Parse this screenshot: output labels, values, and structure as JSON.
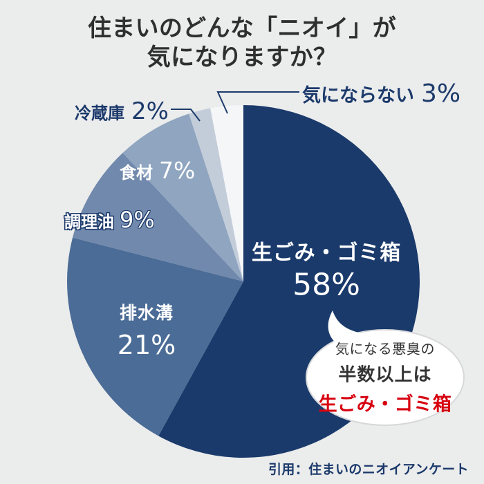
{
  "title": {
    "line1": "住まいのどんな「ニオイ」が",
    "line2": "気になりますか？"
  },
  "chart_data": {
    "type": "pie",
    "title": "住まいのどんな「ニオイ」が気になりますか？",
    "unit": "%",
    "start_angle_deg": 0,
    "direction": "clockwise",
    "total": 100,
    "segments": [
      {
        "label": "生ごみ・ゴミ箱",
        "value": 58,
        "pct_label": "58%",
        "color": "#1a3a6b",
        "label_color": "#ffffff"
      },
      {
        "label": "排水溝",
        "value": 21,
        "pct_label": "21%",
        "color": "#4b6c96",
        "label_color": "#ffffff"
      },
      {
        "label": "調理油",
        "value": 9,
        "pct_label": "9%",
        "color": "#7189ac",
        "label_color": "#ffffff"
      },
      {
        "label": "食材",
        "value": 7,
        "pct_label": "7%",
        "color": "#8fa5c0",
        "label_color": "#ffffff"
      },
      {
        "label": "冷蔵庫",
        "value": 2,
        "pct_label": "2%",
        "color": "#c3cdda",
        "label_color": "#1c3a6b"
      },
      {
        "label": "気にならない",
        "value": 3,
        "pct_label": "3%",
        "color": "#f5f6f8",
        "label_color": "#1c3a6b"
      }
    ]
  },
  "callout": {
    "line1": "気になる悪臭の",
    "line2": "半数以上は",
    "line3": "生ごみ・ゴミ箱",
    "accent_color": "#d7000f",
    "text_color": "#333333"
  },
  "source": {
    "text": "引用：住まいのニオイアンケート"
  },
  "colors": {
    "background": "#ebecec",
    "title_text": "#2f2f2f",
    "label_navy": "#1c3a6b",
    "leader_line": "#1c3a6b",
    "bubble_fill": "#ffffff",
    "bubble_border": "#d7d8da",
    "callout_red": "#d7000f"
  }
}
